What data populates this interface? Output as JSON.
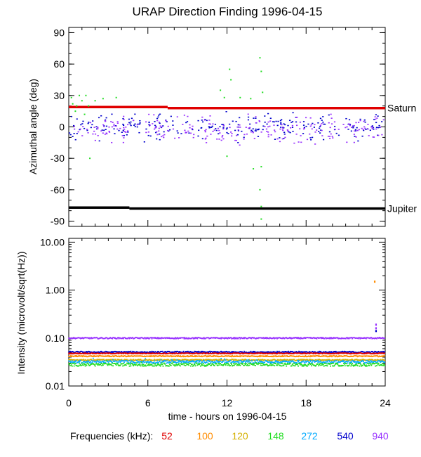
{
  "title": "URAP Direction Finding  1996-04-15",
  "xlabel": "time - hours on 1996-04-15",
  "freq_label": "Frequencies (kHz):",
  "colors": {
    "52": "#e00000",
    "100": "#ff8c00",
    "120": "#d4b000",
    "148": "#22dd22",
    "272": "#00aaff",
    "540": "#0000cc",
    "940": "#9933ff",
    "saturn": "#e00000",
    "jupiter": "#000000"
  },
  "chart_data": [
    {
      "type": "scatter",
      "panel": "top",
      "ylabel": "Azimuthal angle (deg)",
      "xlim": [
        0,
        24
      ],
      "ylim": [
        -95,
        95
      ],
      "x_ticks": [
        0,
        6,
        12,
        18,
        24
      ],
      "y_ticks": [
        90,
        60,
        30,
        0,
        -30,
        -60,
        -90
      ],
      "reference_lines": [
        {
          "name": "Saturn",
          "segments": [
            {
              "x": [
                0,
                7.5
              ],
              "y": 19
            },
            {
              "x": [
                7.5,
                24
              ],
              "y": 18
            }
          ]
        },
        {
          "name": "Jupiter",
          "segments": [
            {
              "x": [
                0,
                4.6
              ],
              "y": -77
            },
            {
              "x": [
                4.6,
                24
              ],
              "y": -78
            }
          ]
        }
      ],
      "series": [
        {
          "freq": "540",
          "x_range": [
            0,
            24
          ],
          "y_center": 0,
          "spread": 12
        },
        {
          "freq": "940",
          "x_range": [
            0,
            24
          ],
          "y_center": -2,
          "spread": 12
        },
        {
          "freq": "148",
          "points": [
            [
              0.2,
              28
            ],
            [
              0.3,
              22
            ],
            [
              0.5,
              15
            ],
            [
              0.6,
              20
            ],
            [
              0.8,
              30
            ],
            [
              1.0,
              25
            ],
            [
              1.2,
              12
            ],
            [
              1.3,
              30
            ],
            [
              1.5,
              20
            ],
            [
              1.6,
              -30
            ],
            [
              2.0,
              25
            ],
            [
              2.6,
              27
            ],
            [
              3.6,
              28
            ],
            [
              11.5,
              35
            ],
            [
              11.8,
              28
            ],
            [
              12.0,
              -28
            ],
            [
              12.2,
              55
            ],
            [
              12.3,
              45
            ],
            [
              13.0,
              28
            ],
            [
              13.8,
              27
            ],
            [
              14.0,
              -40
            ],
            [
              14.5,
              -60
            ],
            [
              14.5,
              66
            ],
            [
              14.6,
              53
            ],
            [
              14.6,
              -38
            ],
            [
              14.6,
              -76
            ],
            [
              14.6,
              -88
            ],
            [
              14.7,
              33
            ]
          ]
        }
      ]
    },
    {
      "type": "scatter",
      "panel": "bottom",
      "ylabel": "Intensity (microvolt/sqrt(Hz))",
      "xlim": [
        0,
        24
      ],
      "ylim": [
        0.01,
        12
      ],
      "log_y": true,
      "x_ticks": [
        0,
        6,
        12,
        18,
        24
      ],
      "y_ticks": [
        "0.01",
        "0.10",
        "1.00",
        "10.00"
      ],
      "y_tick_values": [
        0.01,
        0.1,
        1,
        10
      ],
      "series": [
        {
          "freq": "940",
          "x_range": [
            0,
            24
          ],
          "y_center": 0.1,
          "spread": 0.003,
          "extra": [
            [
              23.3,
              0.19
            ],
            [
              23.3,
              0.16
            ]
          ]
        },
        {
          "freq": "540",
          "x_range": [
            0,
            24
          ],
          "y_center": 0.051,
          "spread": 0.002,
          "extra": [
            [
              23.3,
              0.14
            ]
          ]
        },
        {
          "freq": "52",
          "x_range": [
            0,
            24
          ],
          "y_center": 0.048,
          "spread": 0.001
        },
        {
          "freq": "100",
          "x_range": [
            0,
            24
          ],
          "y_center": 0.042,
          "spread": 0.001,
          "extra": [
            [
              23.2,
              1.5
            ]
          ]
        },
        {
          "freq": "120",
          "x_range": [
            0,
            24
          ],
          "y_center": 0.035,
          "spread": 0.001
        },
        {
          "freq": "272",
          "x_range": [
            0,
            24
          ],
          "y_center": 0.032,
          "spread": 0.002
        },
        {
          "freq": "148",
          "x_range": [
            0,
            24
          ],
          "y_center": 0.028,
          "spread": 0.002
        }
      ]
    }
  ],
  "frequencies": [
    "52",
    "100",
    "120",
    "148",
    "272",
    "540",
    "940"
  ]
}
